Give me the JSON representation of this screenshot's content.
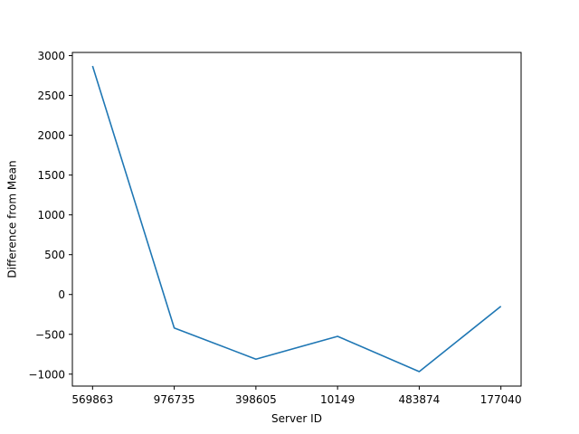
{
  "chart_data": {
    "type": "line",
    "title": "",
    "xlabel": "Server ID",
    "ylabel": "Difference from Mean",
    "categories": [
      "569863",
      "976735",
      "398605",
      "10149",
      "483874",
      "177040"
    ],
    "series": [
      {
        "values": [
          2870,
          -420,
          -812,
          -525,
          -968,
          -148
        ]
      }
    ],
    "ylim": [
      -1150,
      3040
    ],
    "yticks": [
      -1000,
      -500,
      0,
      500,
      1000,
      1500,
      2000,
      2500,
      3000
    ],
    "grid": false,
    "line_color": "#1f77b4"
  }
}
